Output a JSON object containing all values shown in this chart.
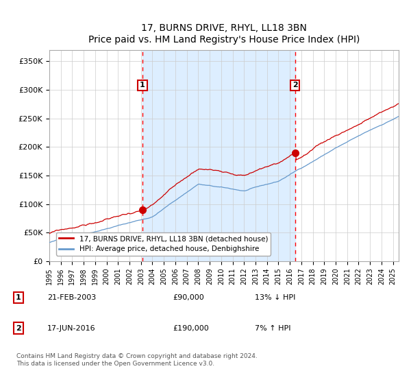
{
  "title": "17, BURNS DRIVE, RHYL, LL18 3BN",
  "subtitle": "Price paid vs. HM Land Registry's House Price Index (HPI)",
  "xlim": [
    1995.0,
    2025.5
  ],
  "ylim": [
    0,
    370000
  ],
  "yticks": [
    0,
    50000,
    100000,
    150000,
    200000,
    250000,
    300000,
    350000
  ],
  "ytick_labels": [
    "£0",
    "£50K",
    "£100K",
    "£150K",
    "£200K",
    "£250K",
    "£300K",
    "£350K"
  ],
  "hpi_color": "#6699cc",
  "price_color": "#cc0000",
  "marker_color": "#cc0000",
  "bg_color": "#ddeeff",
  "grid_color": "#cccccc",
  "purchase1_x": 2003.13,
  "purchase1_y": 90000,
  "purchase2_x": 2016.46,
  "purchase2_y": 190000,
  "legend_entries": [
    "17, BURNS DRIVE, RHYL, LL18 3BN (detached house)",
    "HPI: Average price, detached house, Denbighshire"
  ],
  "annotation1_label": "1",
  "annotation1_date": "21-FEB-2003",
  "annotation1_price": "£90,000",
  "annotation1_hpi": "13% ↓ HPI",
  "annotation2_label": "2",
  "annotation2_date": "17-JUN-2016",
  "annotation2_price": "£190,000",
  "annotation2_hpi": "7% ↑ HPI",
  "footnote": "Contains HM Land Registry data © Crown copyright and database right 2024.\nThis data is licensed under the Open Government Licence v3.0.",
  "shade_start": 2003.13,
  "shade_end": 2016.46
}
